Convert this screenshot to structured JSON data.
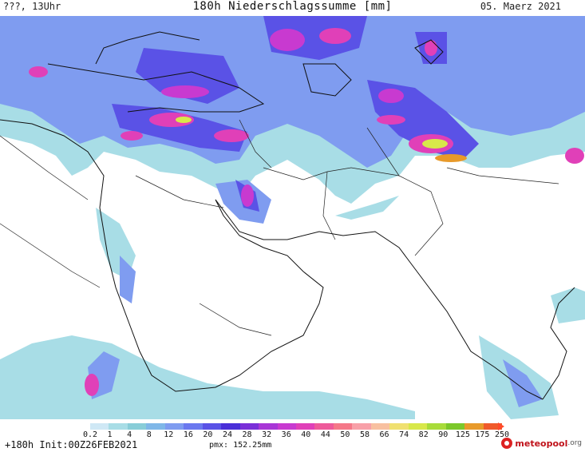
{
  "header": {
    "left_label": "???, 13Uhr",
    "title": "180h Niederschlagssumme [mm]",
    "date": "05. Maerz 2021"
  },
  "legend": {
    "ticks": [
      "0.2",
      "1",
      "4",
      "8",
      "12",
      "16",
      "20",
      "24",
      "28",
      "32",
      "36",
      "40",
      "44",
      "50",
      "58",
      "66",
      "74",
      "82",
      "90",
      "125",
      "175",
      "250"
    ],
    "colors": [
      "#cfe8f5",
      "#a8dde6",
      "#88cdd8",
      "#7fb7e8",
      "#7f9cf0",
      "#6b78ef",
      "#5a52e6",
      "#4a2fd8",
      "#7a2fd8",
      "#a836d6",
      "#c83ad0",
      "#e040b8",
      "#ee5a9a",
      "#f57888",
      "#f8a0a8",
      "#f8c0a0",
      "#f0e070",
      "#d8e84a",
      "#a8dc3a",
      "#7cc82a",
      "#e89a2a",
      "#f05a2a"
    ]
  },
  "footer": {
    "init": "+180h Init:00Z26FEB2021",
    "pmx": "pmx: 152.25mm",
    "logo_name": "meteopool",
    "logo_tld": ".org"
  },
  "map": {
    "precip_colors": {
      "light": "#a8dde6",
      "medium": "#7f9cf0",
      "heavy": "#5a52e6",
      "purple": "#a836d6",
      "magenta": "#e040b8",
      "yellow": "#d8e84a",
      "orange": "#e89a2a"
    }
  }
}
